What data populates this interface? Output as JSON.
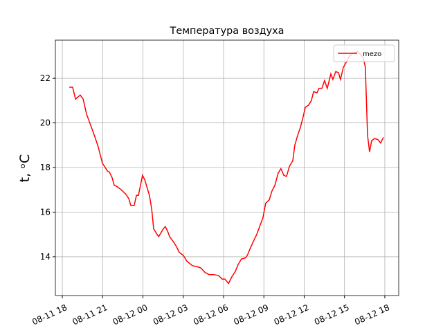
{
  "chart_data": {
    "type": "line",
    "title": "Температура воздуха",
    "ylabel": "t, ᵒC",
    "x": [
      "08-11 18:31",
      "08-11 18:46",
      "08-11 18:59",
      "08-11 19:20",
      "08-11 19:33",
      "08-11 19:48",
      "08-11 20:10",
      "08-11 20:28",
      "08-11 20:41",
      "08-11 20:59",
      "08-11 21:21",
      "08-11 21:30",
      "08-11 21:42",
      "08-11 21:52",
      "08-11 22:04",
      "08-11 22:23",
      "08-11 22:44",
      "08-11 22:57",
      "08-11 23:06",
      "08-11 23:21",
      "08-11 23:31",
      "08-11 23:40",
      "08-11 23:58",
      "08-12 00:08",
      "08-12 00:20",
      "08-12 00:29",
      "08-12 00:39",
      "08-12 00:48",
      "08-12 01:00",
      "08-12 01:10",
      "08-12 01:22",
      "08-12 01:31",
      "08-12 01:40",
      "08-12 01:50",
      "08-12 01:59",
      "08-12 02:14",
      "08-12 02:30",
      "08-12 02:42",
      "08-12 03:01",
      "08-12 03:16",
      "08-12 03:41",
      "08-12 04:03",
      "08-12 04:18",
      "08-12 04:37",
      "08-12 04:55",
      "08-12 05:17",
      "08-12 05:38",
      "08-12 05:54",
      "08-12 06:06",
      "08-12 06:22",
      "08-12 06:37",
      "08-12 06:53",
      "08-12 07:05",
      "08-12 07:20",
      "08-12 07:39",
      "08-12 07:48",
      "08-12 08:00",
      "08-12 08:16",
      "08-12 08:28",
      "08-12 08:41",
      "08-12 08:56",
      "08-12 09:08",
      "08-12 09:24",
      "08-12 09:36",
      "08-12 09:49",
      "08-12 10:04",
      "08-12 10:16",
      "08-12 10:29",
      "08-12 10:41",
      "08-12 10:54",
      "08-12 11:09",
      "08-12 11:18",
      "08-12 11:31",
      "08-12 11:43",
      "08-12 11:55",
      "08-12 12:05",
      "08-12 12:20",
      "08-12 12:32",
      "08-12 12:42",
      "08-12 12:57",
      "08-12 13:06",
      "08-12 13:19",
      "08-12 13:31",
      "08-12 13:43",
      "08-12 13:59",
      "08-12 14:08",
      "08-12 14:21",
      "08-12 14:33",
      "08-12 14:42",
      "08-12 14:55",
      "08-12 15:07",
      "08-12 15:22",
      "08-12 15:35",
      "08-12 15:59",
      "08-12 16:12",
      "08-12 16:24",
      "08-12 16:33",
      "08-12 16:43",
      "08-12 16:52",
      "08-12 17:01",
      "08-12 17:14",
      "08-12 17:29",
      "08-12 17:41",
      "08-12 17:54"
    ],
    "series": [
      {
        "name": "mezo",
        "color": "#ff0000",
        "values": [
          21.6,
          21.6,
          21.07,
          21.25,
          21.07,
          20.4,
          19.8,
          19.3,
          18.9,
          18.2,
          17.85,
          17.8,
          17.55,
          17.2,
          17.15,
          17.0,
          16.8,
          16.6,
          16.3,
          16.3,
          16.75,
          16.75,
          17.65,
          17.45,
          17.05,
          16.75,
          16.15,
          15.25,
          15.05,
          14.9,
          15.1,
          15.25,
          15.35,
          15.15,
          14.9,
          14.7,
          14.45,
          14.2,
          14.05,
          13.8,
          13.6,
          13.55,
          13.5,
          13.3,
          13.2,
          13.2,
          13.15,
          13.0,
          13.0,
          12.8,
          13.1,
          13.35,
          13.65,
          13.9,
          13.95,
          14.1,
          14.4,
          14.75,
          15.0,
          15.35,
          15.75,
          16.4,
          16.55,
          16.95,
          17.2,
          17.75,
          17.95,
          17.65,
          17.6,
          18.05,
          18.3,
          19.0,
          19.45,
          19.8,
          20.25,
          20.7,
          20.8,
          21.0,
          21.4,
          21.35,
          21.55,
          21.55,
          21.9,
          21.55,
          22.2,
          21.95,
          22.3,
          22.25,
          21.95,
          22.5,
          22.7,
          23.0,
          23.1,
          23.2,
          23.05,
          22.9,
          22.5,
          19.45,
          18.7,
          19.2,
          19.3,
          19.25,
          19.1,
          19.35
        ]
      }
    ],
    "xlim": [
      "08-11 17:29",
      "08-12 19:02"
    ],
    "xticks": [
      "08-11 18",
      "08-11 21",
      "08-12 00",
      "08-12 03",
      "08-12 06",
      "08-12 09",
      "08-12 12",
      "08-12 15",
      "08-12 18"
    ],
    "ylim": [
      12.26,
      23.71
    ],
    "yticks": [
      14,
      16,
      18,
      20,
      22
    ],
    "grid": true,
    "legend": "upper right"
  }
}
